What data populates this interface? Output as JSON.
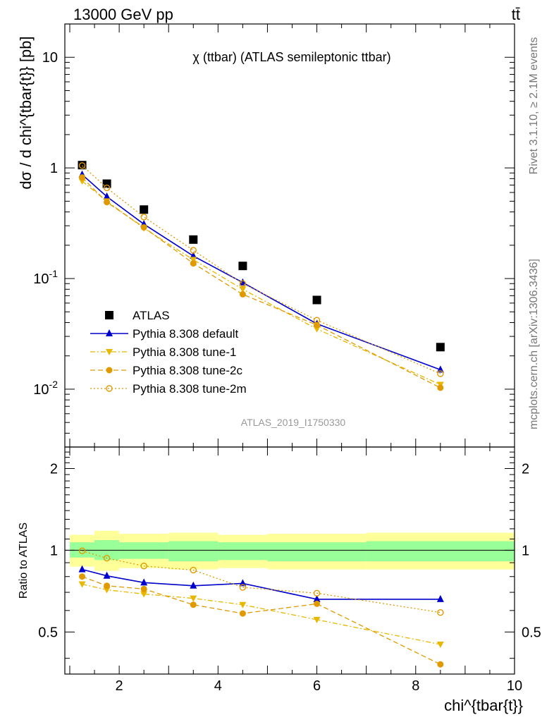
{
  "header": {
    "energy_label": "13000 GeV pp",
    "process_label": "tt̄",
    "side_label_top": "Rivet 3.1.10, ≥ 2.1M events",
    "side_label_bottom": "mcplots.cern.ch [arXiv:1306.3436]",
    "analysis_id": "ATLAS_2019_I1750330"
  },
  "chart_data": [
    {
      "type": "scatter",
      "panel": "main",
      "title": "χ (ttbar) (ATLAS semileptonic ttbar)",
      "ylabel": "dσ / d chi^{tbar{t}} [pb]",
      "yscale": "log",
      "ylim": [
        0.003,
        20
      ],
      "xlim": [
        0.9,
        10
      ],
      "y_tick_labels": [
        "10^{-2}",
        "10^{-1}",
        "1",
        "10"
      ],
      "legend_position": "bottom-left",
      "x": [
        1.25,
        1.75,
        2.5,
        3.5,
        4.5,
        6.0,
        8.5
      ],
      "bin_edges": [
        1.0,
        1.5,
        2.0,
        3.0,
        4.0,
        5.0,
        7.0,
        10.0
      ],
      "series": [
        {
          "name": "ATLAS",
          "style": "data",
          "color": "#000000",
          "values": [
            1.06,
            0.72,
            0.42,
            0.225,
            0.13,
            0.064,
            0.024
          ]
        },
        {
          "name": "Pythia 8.308 default",
          "style": "solid",
          "marker": "triangle-up",
          "color": "#0000cc",
          "values": [
            0.87,
            0.55,
            0.31,
            0.16,
            0.092,
            0.039,
            0.015
          ]
        },
        {
          "name": "Pythia 8.308 tune-1",
          "style": "dashdot",
          "marker": "triangle-down",
          "color": "#e8b800",
          "values": [
            0.76,
            0.5,
            0.285,
            0.148,
            0.08,
            0.035,
            0.011
          ]
        },
        {
          "name": "Pythia 8.308 tune-2c",
          "style": "dashed",
          "marker": "circle",
          "color": "#e09a00",
          "values": [
            0.82,
            0.49,
            0.29,
            0.137,
            0.072,
            0.038,
            0.0103
          ]
        },
        {
          "name": "Pythia 8.308 tune-2m",
          "style": "dotted",
          "marker": "open-circle",
          "color": "#e09a00",
          "values": [
            1.05,
            0.66,
            0.36,
            0.18,
            0.09,
            0.042,
            0.0138
          ]
        }
      ]
    },
    {
      "type": "scatter",
      "panel": "ratio",
      "ylabel": "Ratio to ATLAS",
      "xlabel": "chi^{tbar{t}}",
      "ylim": [
        0.35,
        2.4
      ],
      "xlim": [
        0.9,
        10
      ],
      "x_tick_labels": [
        "2",
        "4",
        "6",
        "8",
        "10"
      ],
      "y_tick_labels": [
        "0.5",
        "1",
        "2"
      ],
      "bin_edges": [
        1.0,
        1.5,
        2.0,
        3.0,
        4.0,
        5.0,
        7.0,
        10.0
      ],
      "band_inner": [
        [
          0.94,
          1.07
        ],
        [
          0.92,
          1.09
        ],
        [
          0.93,
          1.07
        ],
        [
          0.91,
          1.08
        ],
        [
          0.92,
          1.07
        ],
        [
          0.91,
          1.07
        ],
        [
          0.91,
          1.08
        ]
      ],
      "band_outer": [
        [
          0.87,
          1.14
        ],
        [
          0.84,
          1.18
        ],
        [
          0.86,
          1.15
        ],
        [
          0.85,
          1.16
        ],
        [
          0.86,
          1.14
        ],
        [
          0.85,
          1.15
        ],
        [
          0.85,
          1.16
        ]
      ],
      "x": [
        1.25,
        1.75,
        2.5,
        3.5,
        4.5,
        6.0,
        8.5
      ],
      "series": [
        {
          "name": "Pythia 8.308 default",
          "style": "solid",
          "marker": "triangle-up",
          "color": "#0000cc",
          "values": [
            0.85,
            0.805,
            0.76,
            0.74,
            0.755,
            0.66,
            0.66
          ]
        },
        {
          "name": "Pythia 8.308 tune-1",
          "style": "dashdot",
          "marker": "triangle-down",
          "color": "#e8b800",
          "values": [
            0.75,
            0.715,
            0.69,
            0.665,
            0.63,
            0.555,
            0.45
          ]
        },
        {
          "name": "Pythia 8.308 tune-2c",
          "style": "dashed",
          "marker": "circle",
          "color": "#e09a00",
          "values": [
            0.8,
            0.74,
            0.72,
            0.63,
            0.585,
            0.635,
            0.38
          ]
        },
        {
          "name": "Pythia 8.308 tune-2m",
          "style": "dotted",
          "marker": "open-circle",
          "color": "#e09a00",
          "values": [
            0.995,
            0.935,
            0.875,
            0.845,
            0.73,
            0.695,
            0.59
          ]
        }
      ]
    }
  ]
}
